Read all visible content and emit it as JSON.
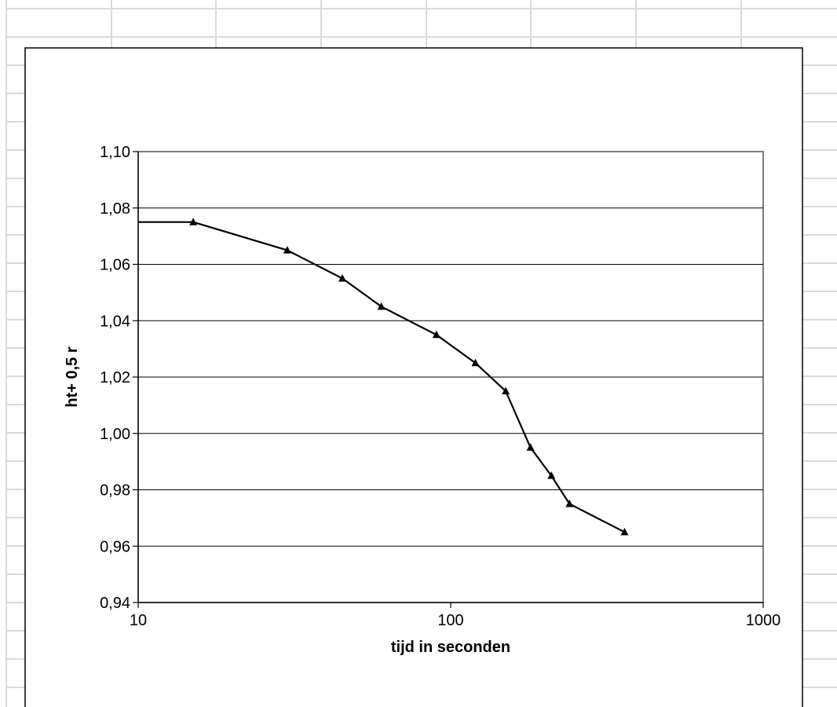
{
  "chart_data": {
    "type": "line",
    "title": "",
    "xlabel": "tijd in seconden",
    "ylabel": "ht+ 0,5 r",
    "x_scale": "log",
    "xlim": [
      10,
      1000
    ],
    "ylim": [
      0.94,
      1.1
    ],
    "x_ticks": [
      10,
      100,
      1000
    ],
    "x_tick_labels": [
      "10",
      "100",
      "1000"
    ],
    "y_ticks": [
      0.94,
      0.96,
      0.98,
      1.0,
      1.02,
      1.04,
      1.06,
      1.08,
      1.1
    ],
    "y_tick_labels": [
      "0,94",
      "0,96",
      "0,98",
      "1,00",
      "1,02",
      "1,04",
      "1,06",
      "1,08",
      "1,10"
    ],
    "grid": "horizontal major",
    "legend": "none",
    "line_color": "#000000",
    "marker": "triangle",
    "series": [
      {
        "x": [
          10,
          15,
          30,
          45,
          60,
          90,
          120,
          150,
          180,
          210,
          240,
          360
        ],
        "y": [
          1.075,
          1.075,
          1.065,
          1.055,
          1.045,
          1.035,
          1.025,
          1.015,
          0.995,
          0.985,
          0.975,
          0.965
        ],
        "markers": [
          false,
          true,
          true,
          true,
          true,
          true,
          true,
          true,
          true,
          true,
          true,
          true
        ]
      }
    ]
  }
}
